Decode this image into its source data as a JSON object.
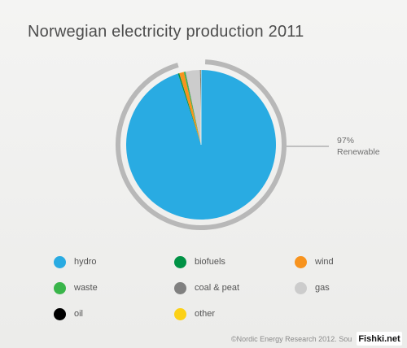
{
  "title": "Norwegian electricity production 2011",
  "annotation": {
    "value": "97%",
    "label": "Renewable"
  },
  "footer": "©Nordic Energy Research 2012. Sou",
  "watermark": "Fishki.net",
  "chart_data": {
    "type": "pie",
    "title": "Norwegian electricity production 2011",
    "categories": [
      "hydro",
      "biofuels",
      "wind",
      "waste",
      "coal & peat",
      "gas",
      "oil",
      "other"
    ],
    "values": [
      95.0,
      0.3,
      1.0,
      0.3,
      0.1,
      3.1,
      0.1,
      0.1
    ],
    "colors": {
      "hydro": "#29abe2",
      "biofuels": "#009245",
      "wind": "#f7931e",
      "waste": "#39b54a",
      "coal & peat": "#808080",
      "gas": "#cccccc",
      "oil": "#000000",
      "other": "#fcd116"
    },
    "renewable_share": 97,
    "legend_position": "bottom"
  }
}
